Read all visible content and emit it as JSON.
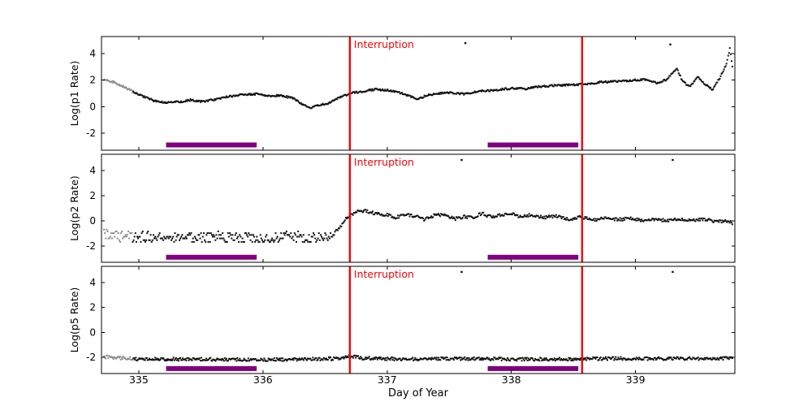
{
  "figure": {
    "background": "#ffffff",
    "frame_color": "#000000",
    "text_color": "#000000"
  },
  "chart_data": {
    "type": "scatter",
    "title": "",
    "xlabel": "Day of Year",
    "xlim": [
      334.7,
      339.8
    ],
    "xticks": [
      335,
      336,
      337,
      338,
      339
    ],
    "grid": false,
    "interruption": {
      "label": "Interruption",
      "color": "#ff0000",
      "lines_x": [
        336.7,
        338.57
      ]
    },
    "bars": {
      "color": "#800080",
      "y": -2.9,
      "spans": [
        [
          335.22,
          335.95
        ],
        [
          337.81,
          338.54
        ]
      ]
    },
    "panels": [
      {
        "ylabel": "Log(p1 Rate)",
        "ylim": [
          -3.3,
          5.3
        ],
        "yticks": [
          -2,
          0,
          2,
          4
        ],
        "point_color": "#111111",
        "gray_color": "#8c8c8c",
        "gray_until": 334.95,
        "seed": 1,
        "n_points": 750,
        "noise_segments": [
          {
            "until": 340,
            "amp": 0.07,
            "quantize": 0
          }
        ],
        "anchors": [
          [
            334.72,
            2.05
          ],
          [
            334.8,
            1.85
          ],
          [
            334.88,
            1.5
          ],
          [
            334.96,
            1.1
          ],
          [
            335.04,
            0.75
          ],
          [
            335.12,
            0.45
          ],
          [
            335.22,
            0.3
          ],
          [
            335.32,
            0.35
          ],
          [
            335.42,
            0.5
          ],
          [
            335.5,
            0.4
          ],
          [
            335.6,
            0.5
          ],
          [
            335.72,
            0.75
          ],
          [
            335.82,
            0.9
          ],
          [
            335.95,
            0.95
          ],
          [
            336.05,
            0.8
          ],
          [
            336.15,
            0.85
          ],
          [
            336.25,
            0.6
          ],
          [
            336.32,
            0.15
          ],
          [
            336.38,
            -0.1
          ],
          [
            336.44,
            0.1
          ],
          [
            336.52,
            0.2
          ],
          [
            336.6,
            0.6
          ],
          [
            336.7,
            1.0
          ],
          [
            336.8,
            1.15
          ],
          [
            336.9,
            1.3
          ],
          [
            337.0,
            1.25
          ],
          [
            337.1,
            1.05
          ],
          [
            337.18,
            0.8
          ],
          [
            337.24,
            0.55
          ],
          [
            337.32,
            0.85
          ],
          [
            337.42,
            1.0
          ],
          [
            337.52,
            1.05
          ],
          [
            337.62,
            0.95
          ],
          [
            337.72,
            1.15
          ],
          [
            337.82,
            1.2
          ],
          [
            337.92,
            1.3
          ],
          [
            338.02,
            1.4
          ],
          [
            338.12,
            1.35
          ],
          [
            338.22,
            1.5
          ],
          [
            338.35,
            1.6
          ],
          [
            338.5,
            1.65
          ],
          [
            338.6,
            1.7
          ],
          [
            338.72,
            1.85
          ],
          [
            338.85,
            1.9
          ],
          [
            339.0,
            2.0
          ],
          [
            339.1,
            2.05
          ],
          [
            339.18,
            1.75
          ],
          [
            339.26,
            2.1
          ],
          [
            339.33,
            2.9
          ],
          [
            339.38,
            1.9
          ],
          [
            339.44,
            1.5
          ],
          [
            339.5,
            2.3
          ],
          [
            339.56,
            1.7
          ],
          [
            339.62,
            1.3
          ],
          [
            339.68,
            2.2
          ],
          [
            339.73,
            3.2
          ],
          [
            339.76,
            4.4
          ],
          [
            339.78,
            3.0
          ],
          [
            339.8,
            2.1
          ]
        ],
        "outliers": [
          [
            337.63,
            4.8
          ],
          [
            339.28,
            4.7
          ]
        ]
      },
      {
        "ylabel": "Log(p2 Rate)",
        "ylim": [
          -3.3,
          5.3
        ],
        "yticks": [
          -2,
          0,
          2,
          4
        ],
        "point_color": "#111111",
        "gray_color": "#8c8c8c",
        "gray_until": 334.95,
        "seed": 2,
        "n_points": 700,
        "noise_segments": [
          {
            "until": 336.58,
            "amp": 0.42,
            "quantize": 0.14
          },
          {
            "until": 340,
            "amp": 0.12,
            "quantize": 0
          }
        ],
        "anchors": [
          [
            334.72,
            -1.0
          ],
          [
            334.85,
            -1.2
          ],
          [
            335.0,
            -1.3
          ],
          [
            335.3,
            -1.35
          ],
          [
            335.6,
            -1.3
          ],
          [
            335.9,
            -1.35
          ],
          [
            336.2,
            -1.3
          ],
          [
            336.45,
            -1.35
          ],
          [
            336.55,
            -1.2
          ],
          [
            336.62,
            -0.5
          ],
          [
            336.68,
            0.3
          ],
          [
            336.75,
            0.7
          ],
          [
            336.82,
            0.8
          ],
          [
            336.92,
            0.55
          ],
          [
            337.0,
            0.5
          ],
          [
            337.06,
            0.25
          ],
          [
            337.14,
            0.5
          ],
          [
            337.22,
            0.4
          ],
          [
            337.3,
            0.1
          ],
          [
            337.38,
            0.45
          ],
          [
            337.46,
            0.5
          ],
          [
            337.54,
            0.15
          ],
          [
            337.62,
            0.35
          ],
          [
            337.7,
            0.25
          ],
          [
            337.76,
            0.6
          ],
          [
            337.84,
            0.3
          ],
          [
            337.92,
            0.45
          ],
          [
            338.0,
            0.6
          ],
          [
            338.08,
            0.3
          ],
          [
            338.16,
            0.5
          ],
          [
            338.26,
            0.25
          ],
          [
            338.36,
            0.4
          ],
          [
            338.46,
            0.15
          ],
          [
            338.56,
            0.3
          ],
          [
            338.66,
            0.05
          ],
          [
            338.76,
            0.25
          ],
          [
            338.86,
            0.1
          ],
          [
            338.96,
            0.2
          ],
          [
            339.06,
            0.05
          ],
          [
            339.16,
            0.15
          ],
          [
            339.26,
            0.0
          ],
          [
            339.36,
            0.15
          ],
          [
            339.46,
            0.05
          ],
          [
            339.56,
            0.1
          ],
          [
            339.66,
            -0.05
          ],
          [
            339.74,
            0.0
          ],
          [
            339.8,
            -0.25
          ]
        ],
        "outliers": [
          [
            337.6,
            4.85
          ],
          [
            339.3,
            4.85
          ]
        ]
      },
      {
        "ylabel": "Log(p5 Rate)",
        "ylim": [
          -3.3,
          5.3
        ],
        "yticks": [
          -2,
          0,
          2,
          4
        ],
        "point_color": "#111111",
        "gray_color": "#8c8c8c",
        "gray_until": 334.95,
        "seed": 3,
        "n_points": 750,
        "noise_segments": [
          {
            "until": 340,
            "amp": 0.13,
            "quantize": 0
          }
        ],
        "anchors": [
          [
            334.72,
            -1.95
          ],
          [
            334.85,
            -2.05
          ],
          [
            335.0,
            -2.15
          ],
          [
            335.5,
            -2.15
          ],
          [
            336.0,
            -2.2
          ],
          [
            336.4,
            -2.15
          ],
          [
            336.62,
            -2.1
          ],
          [
            336.7,
            -1.85
          ],
          [
            336.78,
            -2.05
          ],
          [
            337.2,
            -2.15
          ],
          [
            337.6,
            -2.1
          ],
          [
            338.0,
            -2.15
          ],
          [
            338.4,
            -2.15
          ],
          [
            338.8,
            -2.1
          ],
          [
            339.2,
            -2.1
          ],
          [
            339.6,
            -2.1
          ],
          [
            339.8,
            -2.05
          ]
        ],
        "outliers": [
          [
            337.6,
            4.85
          ],
          [
            339.3,
            4.85
          ]
        ]
      }
    ]
  }
}
